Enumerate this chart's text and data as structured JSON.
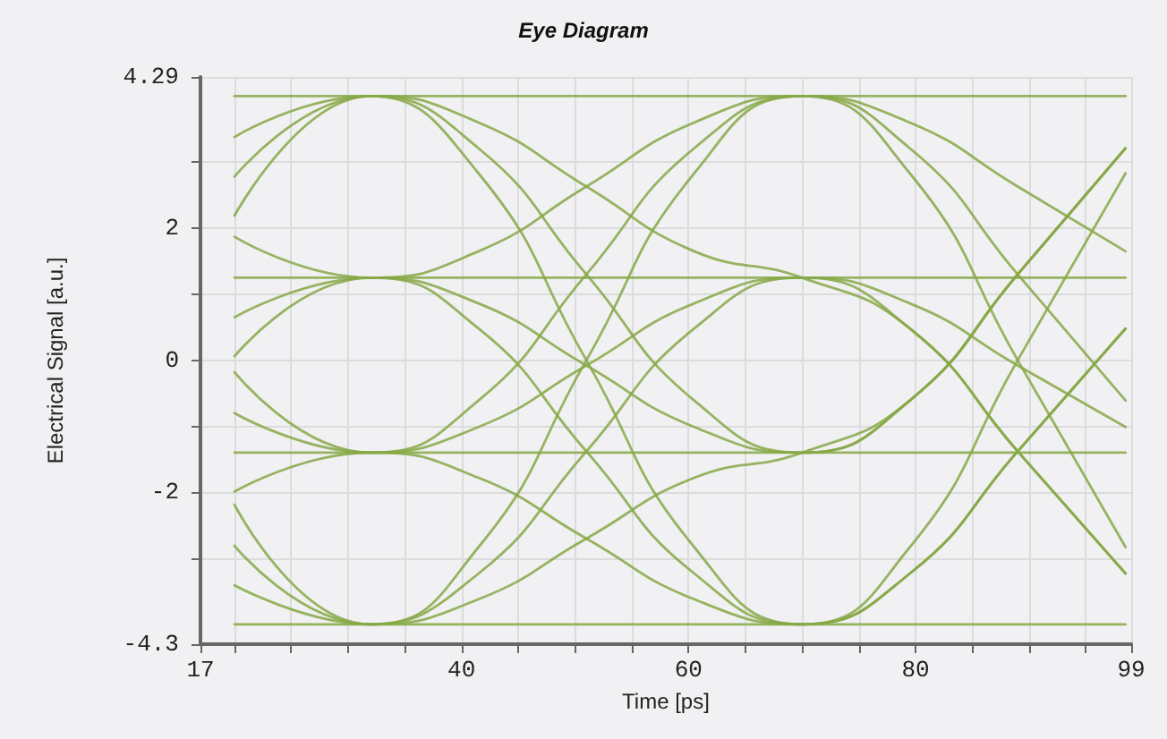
{
  "chart_data": {
    "type": "line",
    "title": "Eye Diagram",
    "xlabel": "Time [ps]",
    "ylabel": "Electrical Signal [a.u.]",
    "xlim": [
      17,
      99
    ],
    "xticks": [
      17,
      {
        "value": 20,
        "label": null
      },
      {
        "value": 25,
        "label": null
      },
      {
        "value": 30,
        "label": null
      },
      {
        "value": 35,
        "label": null
      },
      40,
      {
        "value": 45,
        "label": null
      },
      {
        "value": 50,
        "label": null
      },
      {
        "value": 55,
        "label": null
      },
      60,
      {
        "value": 65,
        "label": null
      },
      {
        "value": 70,
        "label": null
      },
      {
        "value": 75,
        "label": null
      },
      80,
      {
        "value": 85,
        "label": null
      },
      {
        "value": 90,
        "label": null
      },
      {
        "value": 95,
        "label": null
      },
      99
    ],
    "ylim": [
      -4.3,
      4.29
    ],
    "yticks": [
      -4.3,
      {
        "value": -3,
        "label": null
      },
      -2,
      {
        "value": -1,
        "label": null
      },
      0,
      {
        "value": 1,
        "label": null
      },
      2,
      {
        "value": 3,
        "label": null
      },
      4.29
    ],
    "grid": true,
    "marker": "none",
    "x": [
      20,
      32,
      41.5,
      51,
      60.5,
      70,
      79.5,
      89,
      98.5
    ],
    "series": [
      {
        "color": "#86a845",
        "values": [
          4,
          4,
          4,
          4,
          4,
          4,
          4,
          4,
          4
        ]
      },
      {
        "color": "#86a845",
        "values": [
          1.25,
          1.25,
          1.25,
          1.25,
          1.25,
          1.25,
          1.25,
          1.25,
          1.25
        ]
      },
      {
        "color": "#86a845",
        "values": [
          -1.4,
          -1.4,
          -1.4,
          -1.4,
          -1.4,
          -1.4,
          -1.4,
          -1.4,
          -1.4
        ]
      },
      {
        "color": "#86a845",
        "values": [
          -4,
          -4,
          -4,
          -4,
          -4,
          -4,
          -4,
          -4,
          -4
        ]
      },
      {
        "color": "#86a845",
        "values": [
          3.38,
          4,
          3.6,
          2.63,
          1.65,
          1.25,
          0.48,
          -1.38,
          -3.23
        ]
      },
      {
        "color": "#86a845",
        "values": [
          2.78,
          4,
          3.21,
          1.3,
          -0.61,
          -1.4,
          -0.61,
          1.3,
          3.21
        ]
      },
      {
        "color": "#86a845",
        "values": [
          2.19,
          4,
          2.83,
          0,
          -2.83,
          -4,
          -3.23,
          -1.38,
          0.48
        ]
      },
      {
        "color": "#86a845",
        "values": [
          1.87,
          1.25,
          1.65,
          2.63,
          3.6,
          4,
          3.21,
          1.3,
          -0.61
        ]
      },
      {
        "color": "#86a845",
        "values": [
          0.06,
          1.25,
          0.86,
          -0.08,
          -1.01,
          -1.4,
          -0.61,
          1.3,
          3.21
        ]
      },
      {
        "color": "#86a845",
        "values": [
          0.65,
          1.25,
          0.48,
          -1.38,
          -3.23,
          -4,
          -3.23,
          -1.38,
          0.48
        ]
      },
      {
        "color": "#86a845",
        "values": [
          -0.8,
          -1.4,
          -0.61,
          1.3,
          3.21,
          4,
          2.83,
          0,
          -2.83
        ]
      },
      {
        "color": "#86a845",
        "values": [
          -0.18,
          -1.4,
          -1.01,
          -0.08,
          0.86,
          1.25,
          0.86,
          -0.08,
          -1.01
        ]
      },
      {
        "color": "#86a845",
        "values": [
          -1.99,
          -1.4,
          -1.78,
          -2.7,
          -3.62,
          -4,
          -2.83,
          0,
          2.83
        ]
      },
      {
        "color": "#86a845",
        "values": [
          -3.41,
          -4,
          -2.83,
          0,
          2.83,
          4,
          3.6,
          2.63,
          1.65
        ]
      },
      {
        "color": "#86a845",
        "values": [
          -2.19,
          -4,
          -3.23,
          -1.38,
          0.48,
          1.25,
          0.48,
          -1.38,
          -3.23
        ]
      },
      {
        "color": "#86a845",
        "values": [
          -2.81,
          -4,
          -3.62,
          -2.7,
          -1.78,
          -1.4,
          -0.61,
          1.3,
          3.21
        ]
      }
    ]
  }
}
